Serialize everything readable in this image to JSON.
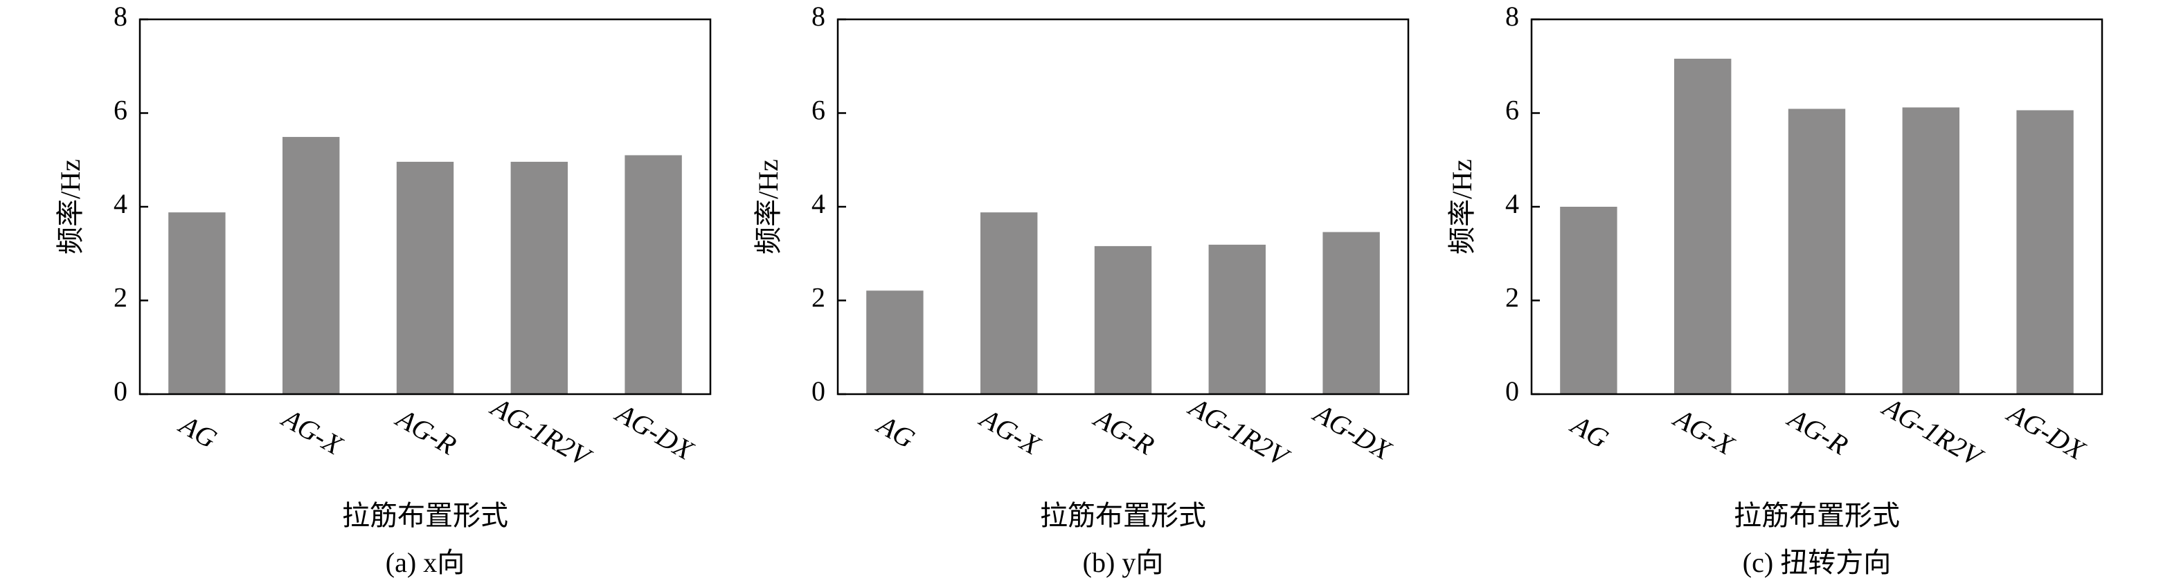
{
  "chart_data": [
    {
      "type": "bar",
      "ylabel": "频率/Hz",
      "xlabel": "拉筋布置形式",
      "caption": "(a) x向",
      "categories": [
        "AG",
        "AG-X",
        "AG-R",
        "AG-1R2V",
        "AG-DX"
      ],
      "values": [
        3.88,
        5.49,
        4.96,
        4.96,
        5.1
      ],
      "color": "#8c8b8b",
      "ylim": [
        0,
        8
      ],
      "yticks": [
        0,
        2,
        4,
        6,
        8
      ]
    },
    {
      "type": "bar",
      "ylabel": "频率/Hz",
      "xlabel": "拉筋布置形式",
      "caption": "(b) y向",
      "categories": [
        "AG",
        "AG-X",
        "AG-R",
        "AG-1R2V",
        "AG-DX"
      ],
      "values": [
        2.21,
        3.88,
        3.16,
        3.19,
        3.46
      ],
      "color": "#8c8b8b",
      "ylim": [
        0,
        8
      ],
      "yticks": [
        0,
        2,
        4,
        6,
        8
      ]
    },
    {
      "type": "bar",
      "ylabel": "频率/Hz",
      "xlabel": "拉筋布置形式",
      "caption": "(c) 扭转方向",
      "categories": [
        "AG",
        "AG-X",
        "AG-R",
        "AG-1R2V",
        "AG-DX"
      ],
      "values": [
        4.0,
        7.16,
        6.09,
        6.12,
        6.06
      ],
      "color": "#8c8b8b",
      "ylim": [
        0,
        8
      ],
      "yticks": [
        0,
        2,
        4,
        6,
        8
      ]
    }
  ]
}
